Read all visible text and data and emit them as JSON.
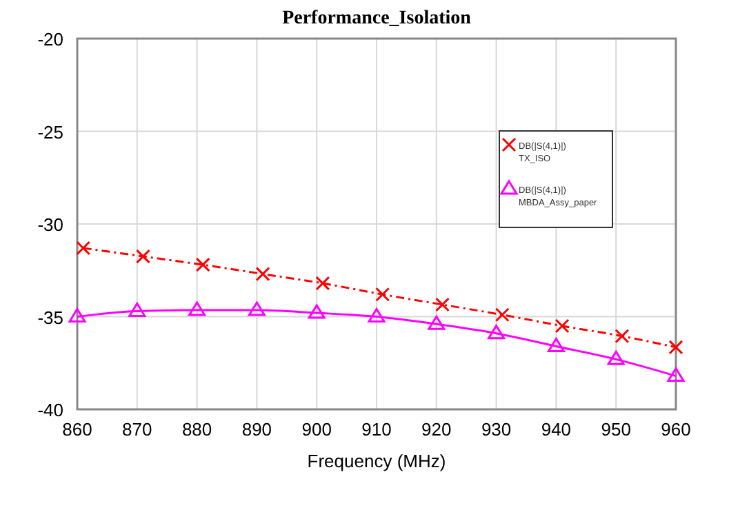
{
  "chart_data": {
    "type": "line",
    "title": "Performance_Isolation",
    "xlabel": "Frequency (MHz)",
    "xlim": [
      860,
      960
    ],
    "xticks": [
      860,
      870,
      880,
      890,
      900,
      910,
      920,
      930,
      940,
      950,
      960
    ],
    "ylim": [
      -40,
      -20
    ],
    "yticks": [
      -40,
      -35,
      -30,
      -25,
      -20
    ],
    "grid": true,
    "legend": "top right",
    "series": [
      {
        "name": "DB(|S(4,1)|)\nTX_ISO",
        "color": "#ff0000",
        "marker": "cross",
        "line_style": "dashed",
        "x": [
          861,
          871,
          881,
          891,
          901,
          911,
          921,
          931,
          941,
          951,
          960
        ],
        "values": [
          -31.3,
          -31.75,
          -32.2,
          -32.7,
          -33.2,
          -33.8,
          -34.35,
          -34.9,
          -35.5,
          -36.05,
          -36.65
        ]
      },
      {
        "name": "DB(|S(4,1)|)\nMBDA_Assy_paper",
        "color": "#ff00ff",
        "marker": "triangle",
        "line_style": "solid",
        "x": [
          860,
          870,
          880,
          890,
          900,
          910,
          920,
          930,
          940,
          950,
          960
        ],
        "values": [
          -35.0,
          -34.7,
          -34.65,
          -34.65,
          -34.8,
          -35.0,
          -35.4,
          -35.9,
          -36.6,
          -37.3,
          -38.2
        ]
      }
    ]
  }
}
